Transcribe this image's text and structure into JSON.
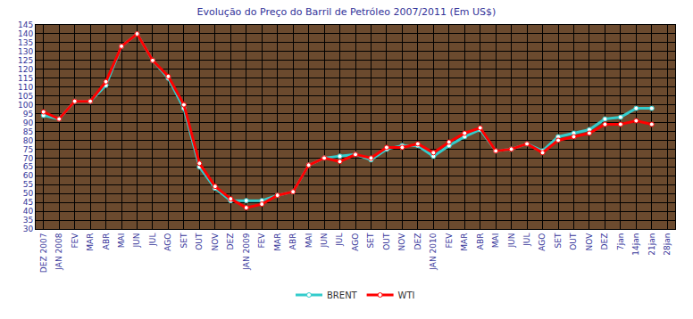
{
  "chart_data": {
    "type": "line",
    "title": "Evolução do Preço do Barril de Petróleo 2007/2011 (Em US$)",
    "categories": [
      "DEZ 2007",
      "JAN 2008",
      "FEV",
      "MAR",
      "ABR",
      "MAI",
      "JUN",
      "JUL",
      "AGO",
      "SET",
      "OUT",
      "NOV",
      "DEZ",
      "JAN 2009",
      "FEV",
      "MAR",
      "ABR",
      "MAI",
      "JUN",
      "JUL",
      "AGO",
      "SET",
      "OUT",
      "NOV",
      "DEZ",
      "JAN 2010",
      "FEV",
      "MAR",
      "ABR",
      "MAI",
      "JUN",
      "JUL",
      "AGO",
      "SET",
      "OUT",
      "NOV",
      "DEZ",
      "7jan",
      "14jan",
      "21jan",
      "28jan"
    ],
    "series": [
      {
        "name": "BRENT",
        "color": "#33cccc",
        "marker": "circle",
        "values": [
          94,
          92,
          102,
          102,
          111,
          133,
          140,
          125,
          115,
          98,
          65,
          53,
          46,
          46,
          46,
          49,
          51,
          66,
          70,
          71,
          72,
          69,
          75,
          77,
          77,
          71,
          77,
          82,
          86,
          74,
          75,
          78,
          74,
          82,
          84,
          86,
          92,
          93,
          98,
          98,
          null
        ]
      },
      {
        "name": "WTI",
        "color": "#ff0000",
        "marker": "circle",
        "values": [
          96,
          92,
          102,
          102,
          113,
          133,
          140,
          125,
          116,
          100,
          67,
          54,
          47,
          42,
          44,
          49,
          51,
          66,
          70,
          68,
          72,
          70,
          76,
          76,
          78,
          73,
          79,
          84,
          87,
          74,
          75,
          78,
          73,
          80,
          82,
          84,
          89,
          89,
          91,
          89,
          null
        ]
      }
    ],
    "ylim": [
      30,
      145
    ],
    "yticks": [
      30,
      35,
      40,
      45,
      50,
      55,
      60,
      65,
      70,
      75,
      80,
      85,
      90,
      95,
      100,
      105,
      110,
      115,
      120,
      125,
      130,
      135,
      140,
      145
    ],
    "grid": true,
    "legend": "bottom"
  }
}
